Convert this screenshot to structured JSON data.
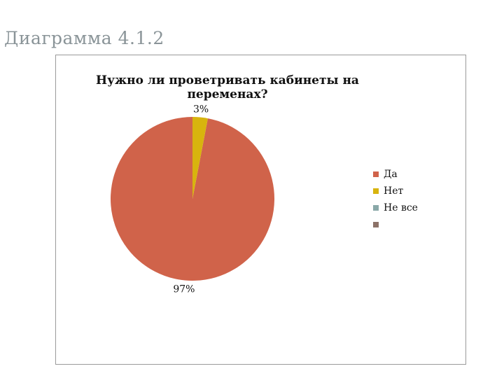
{
  "page": {
    "title": "Диаграмма 4.1.2"
  },
  "chart_data": {
    "type": "pie",
    "title": "Нужно ли проветривать кабинеты на переменах?",
    "categories": [
      "Да",
      "Нет",
      "Не все",
      ""
    ],
    "values": [
      97,
      3,
      0,
      0
    ],
    "value_labels": [
      "97%",
      "3%",
      "",
      ""
    ],
    "colors": [
      "#d0634a",
      "#d8b40e",
      "#8aa8a8",
      "#8c7268"
    ],
    "start_angle_deg": 0,
    "direction": "counterclockwise",
    "legend": "right"
  }
}
